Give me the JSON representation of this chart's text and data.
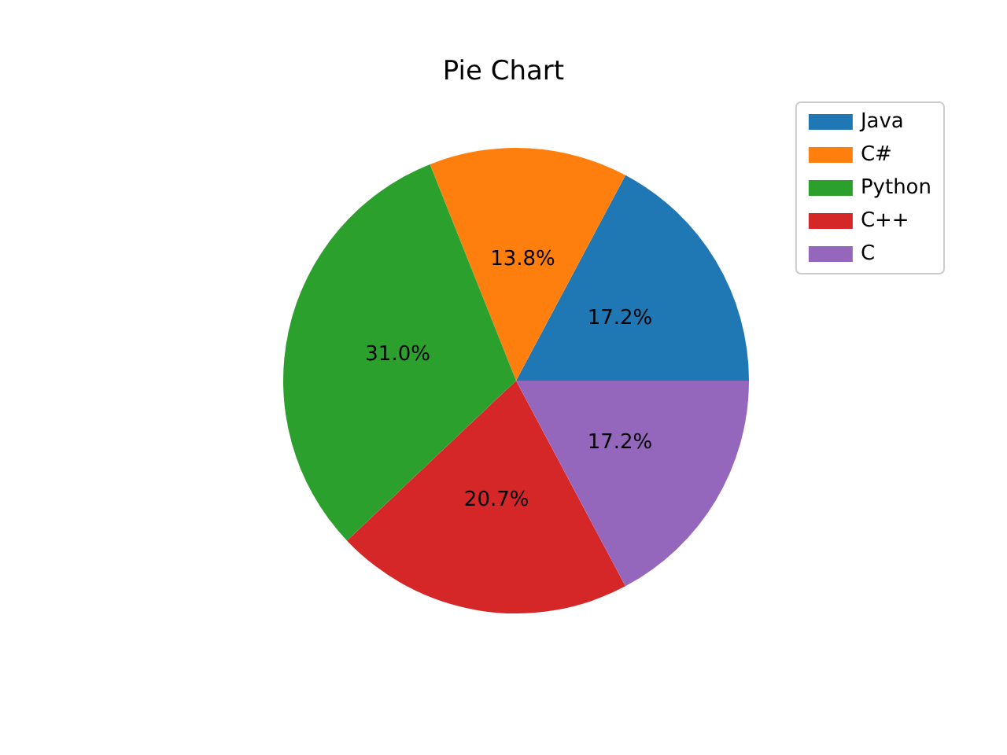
{
  "chart_data": {
    "type": "pie",
    "title": "Pie Chart",
    "categories": [
      "Java",
      "C#",
      "Python",
      "C++",
      "C"
    ],
    "values": [
      17.2,
      13.8,
      31.0,
      20.7,
      17.2
    ],
    "value_labels": [
      "17.2%",
      "13.8%",
      "31.0%",
      "20.7%",
      "17.2%"
    ],
    "colors": [
      "#1f77b4",
      "#ff7f0e",
      "#2ca02c",
      "#d62728",
      "#9467bd"
    ],
    "legend": "top right"
  }
}
